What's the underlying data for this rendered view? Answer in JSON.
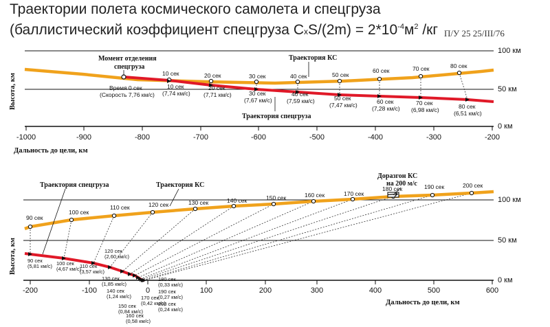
{
  "title": {
    "line1": "Траектории полета космического самолета и спецгруза",
    "line2_prefix": "(баллистический коэффициент спецгруза C",
    "line2_sub": "x",
    "line2_mid": "S/(2m) = 2*10",
    "line2_exp": "-4",
    "line2_unit": "м",
    "line2_unit_exp": "2",
    "line2_suffix": " /кг"
  },
  "stamp": "П/У 25   25/III/76",
  "colors": {
    "ks": "#f0a21c",
    "cargo": "#e01928",
    "axis": "#111111"
  },
  "top_chart": {
    "alt_labels": [
      "100 км",
      "50 км",
      "0 км"
    ],
    "x_ticks": [
      "-1000",
      "-900",
      "-800",
      "-700",
      "-600",
      "-500",
      "-400",
      "-300",
      "-200"
    ],
    "xlabel": "Дальность до цели, км",
    "ylabel": "Высота, км",
    "annotations": {
      "separation": [
        "Момент отделения",
        "спецгруза"
      ],
      "ks": "Траектория КС",
      "cargo": "Траектория спецгруза",
      "t0": [
        "Время 0 сек",
        "(Скорость 7,76 км/с)"
      ]
    },
    "ks_times": [
      "10 сек",
      "20 сек",
      "30 сек",
      "40 сек",
      "50 сек",
      "60 сек",
      "70 сек",
      "80 сек"
    ],
    "cargo_labels": [
      [
        "10 сек",
        "(7,74 км/с)"
      ],
      [
        "20 сек",
        "(7,71 км/с)"
      ],
      [
        "30 сек",
        "(7,67 км/с)"
      ],
      [
        "40 сек",
        "(7,59 км/с)"
      ],
      [
        "50 сек",
        "(7,47 км/с)"
      ],
      [
        "60 сек",
        "(7,28 км/с)"
      ],
      [
        "70 сек",
        "(6,98 км/с)"
      ],
      [
        "80 сек",
        "(6,51 км/с)"
      ]
    ]
  },
  "bottom_chart": {
    "alt_labels": [
      "100 км",
      "50 км",
      "0 км"
    ],
    "x_ticks": [
      "-200",
      "-100",
      "0",
      "100",
      "200",
      "300",
      "400",
      "500",
      "600"
    ],
    "xlabel": "Дальность до цели, км",
    "ylabel": "Высота, км",
    "annotations": {
      "cargo": "Траектория спецгруза",
      "ks": "Траектория КС",
      "boost": [
        "Доразгон КС",
        "на 200 м/с"
      ]
    },
    "ks_times": [
      "90 сек",
      "100 сек",
      "110 сек",
      "120 сек",
      "130 сек",
      "140 сек",
      "150 сек",
      "160 сек",
      "170 сек",
      "180 сек",
      "190 сек",
      "200 сек"
    ],
    "cargo_labels": [
      [
        "90 сек",
        "(5,81 км/с)"
      ],
      [
        "100 сек",
        "(4,67 км/с)"
      ],
      [
        "110 сек",
        "(3,57 км/с)"
      ],
      [
        "120 сек",
        "(2,60 км/с)"
      ],
      [
        "130 сек",
        "(1,85 км/с)"
      ],
      [
        "140 сек",
        "(1,24 км/с)"
      ],
      [
        "150 сек",
        "(0,84 км/с)"
      ],
      [
        "160 сек",
        "(0,58 км/с)"
      ],
      [
        "170 сек",
        "(0,42 км/с)"
      ],
      [
        "180 сек",
        "(0,33 км/с)"
      ],
      [
        "190 сек",
        "(0,27 км/с)"
      ],
      [
        "200 сек",
        "(0,24 км/с)"
      ]
    ]
  }
}
